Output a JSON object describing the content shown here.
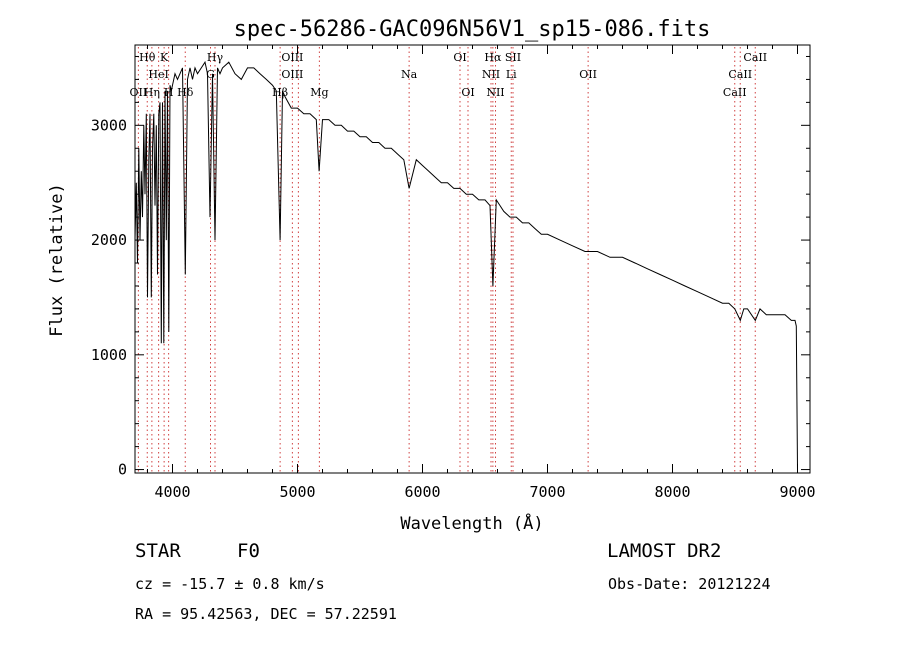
{
  "chart_data": {
    "type": "line",
    "title": "spec-56286-GAC096N56V1_sp15-086.fits",
    "xlabel": "Wavelength (Å)",
    "ylabel": "Flux (relative)",
    "xlim": [
      3700,
      9100
    ],
    "ylim": [
      -30,
      3700
    ],
    "x_ticks": [
      4000,
      5000,
      6000,
      7000,
      8000,
      9000
    ],
    "y_ticks": [
      0,
      1000,
      2000,
      3000
    ],
    "grid": false,
    "line_color": "#000000",
    "marker_color": "#d04040",
    "series": [
      {
        "x": [
          3700,
          3710,
          3720,
          3730,
          3740,
          3750,
          3760,
          3770,
          3780,
          3790,
          3800,
          3810,
          3820,
          3830,
          3840,
          3850,
          3860,
          3870,
          3880,
          3890,
          3900,
          3910,
          3920,
          3930,
          3940,
          3950,
          3960,
          3970,
          3980,
          3990,
          4000,
          4020,
          4040,
          4060,
          4080,
          4102,
          4120,
          4140,
          4160,
          4180,
          4200,
          4230,
          4260,
          4280,
          4300,
          4320,
          4340,
          4360,
          4380,
          4400,
          4450,
          4500,
          4550,
          4600,
          4650,
          4700,
          4750,
          4800,
          4830,
          4861,
          4880,
          4900,
          4950,
          5000,
          5050,
          5100,
          5150,
          5173,
          5200,
          5250,
          5300,
          5350,
          5400,
          5450,
          5500,
          5550,
          5600,
          5650,
          5700,
          5750,
          5800,
          5850,
          5893,
          5950,
          6000,
          6050,
          6100,
          6150,
          6200,
          6250,
          6300,
          6350,
          6400,
          6450,
          6500,
          6540,
          6563,
          6590,
          6650,
          6700,
          6750,
          6800,
          6850,
          6900,
          6950,
          7000,
          7100,
          7200,
          7300,
          7400,
          7500,
          7600,
          7700,
          7800,
          7900,
          8000,
          8100,
          8200,
          8300,
          8400,
          8450,
          8498,
          8542,
          8570,
          8600,
          8662,
          8700,
          8750,
          8800,
          8850,
          8900,
          8950,
          8980,
          8990,
          9000
        ],
        "y": [
          2000,
          2500,
          1800,
          2800,
          2000,
          2600,
          2200,
          3000,
          2400,
          3100,
          1500,
          2700,
          3100,
          1500,
          2800,
          3100,
          2300,
          3000,
          1700,
          3100,
          3200,
          1100,
          3200,
          1100,
          3300,
          2000,
          3300,
          1200,
          3350,
          3300,
          3350,
          3450,
          3400,
          3450,
          3500,
          1700,
          3400,
          3500,
          3400,
          3500,
          3450,
          3500,
          3550,
          3450,
          2200,
          3450,
          2000,
          3500,
          3450,
          3500,
          3550,
          3450,
          3400,
          3500,
          3500,
          3450,
          3400,
          3350,
          3300,
          2000,
          3300,
          3250,
          3150,
          3150,
          3100,
          3100,
          3050,
          2600,
          3050,
          3050,
          3000,
          3000,
          2950,
          2950,
          2900,
          2900,
          2850,
          2850,
          2800,
          2800,
          2750,
          2700,
          2450,
          2700,
          2650,
          2600,
          2550,
          2500,
          2500,
          2450,
          2450,
          2400,
          2400,
          2350,
          2350,
          2300,
          1600,
          2350,
          2250,
          2200,
          2200,
          2150,
          2150,
          2100,
          2050,
          2050,
          2000,
          1950,
          1900,
          1900,
          1850,
          1850,
          1800,
          1750,
          1700,
          1650,
          1600,
          1550,
          1500,
          1450,
          1450,
          1400,
          1300,
          1400,
          1400,
          1300,
          1400,
          1350,
          1350,
          1350,
          1350,
          1300,
          1300,
          1250,
          0
        ]
      }
    ],
    "lines": [
      {
        "wave": 3727,
        "labels": [
          "OII"
        ],
        "rows": [
          2
        ]
      },
      {
        "wave": 3798,
        "labels": [
          "Hθ"
        ],
        "rows": [
          0
        ]
      },
      {
        "wave": 3835,
        "labels": [
          "Hη"
        ],
        "rows": [
          2
        ]
      },
      {
        "wave": 3889,
        "labels": [
          "HeI"
        ],
        "rows": [
          1
        ]
      },
      {
        "wave": 3933,
        "labels": [
          "K"
        ],
        "rows": [
          0
        ]
      },
      {
        "wave": 3969,
        "labels": [
          "H"
        ],
        "rows": [
          2
        ]
      },
      {
        "wave": 4102,
        "labels": [
          "Hδ"
        ],
        "rows": [
          2
        ]
      },
      {
        "wave": 4304,
        "labels": [
          "G"
        ],
        "rows": [
          1
        ]
      },
      {
        "wave": 4340,
        "labels": [
          "Hγ"
        ],
        "rows": [
          0
        ]
      },
      {
        "wave": 4861,
        "labels": [
          "Hβ"
        ],
        "rows": [
          2
        ]
      },
      {
        "wave": 4959,
        "labels": [
          "OIII",
          "OIII"
        ],
        "rows": [
          0,
          1
        ]
      },
      {
        "wave": 5007,
        "labels": [],
        "rows": []
      },
      {
        "wave": 5175,
        "labels": [
          "Mg"
        ],
        "rows": [
          2
        ]
      },
      {
        "wave": 5893,
        "labels": [
          "Na"
        ],
        "rows": [
          1
        ]
      },
      {
        "wave": 6300,
        "labels": [
          "OI"
        ],
        "rows": [
          0
        ]
      },
      {
        "wave": 6364,
        "labels": [
          "OI"
        ],
        "rows": [
          2
        ]
      },
      {
        "wave": 6548,
        "labels": [
          "NII"
        ],
        "rows": [
          1
        ]
      },
      {
        "wave": 6563,
        "labels": [
          "Hα"
        ],
        "rows": [
          0
        ]
      },
      {
        "wave": 6584,
        "labels": [
          "NII"
        ],
        "rows": [
          2
        ]
      },
      {
        "wave": 6710,
        "labels": [
          "Li"
        ],
        "rows": [
          1
        ]
      },
      {
        "wave": 6724,
        "labels": [
          "SII"
        ],
        "rows": [
          0
        ]
      },
      {
        "wave": 7325,
        "labels": [
          "OII"
        ],
        "rows": [
          1
        ]
      },
      {
        "wave": 8498,
        "labels": [
          "CaII"
        ],
        "rows": [
          2
        ]
      },
      {
        "wave": 8542,
        "labels": [
          "CaII"
        ],
        "rows": [
          1
        ]
      },
      {
        "wave": 8662,
        "labels": [
          "CaII"
        ],
        "rows": [
          0
        ]
      }
    ]
  },
  "info": {
    "object_class": "STAR",
    "subclass": "F0",
    "survey": "LAMOST DR2",
    "redshift": "cz = -15.7 ± 0.8 km/s",
    "obs_date": "Obs-Date: 20121224",
    "coords": "RA =  95.42563, DEC =  57.22591"
  }
}
